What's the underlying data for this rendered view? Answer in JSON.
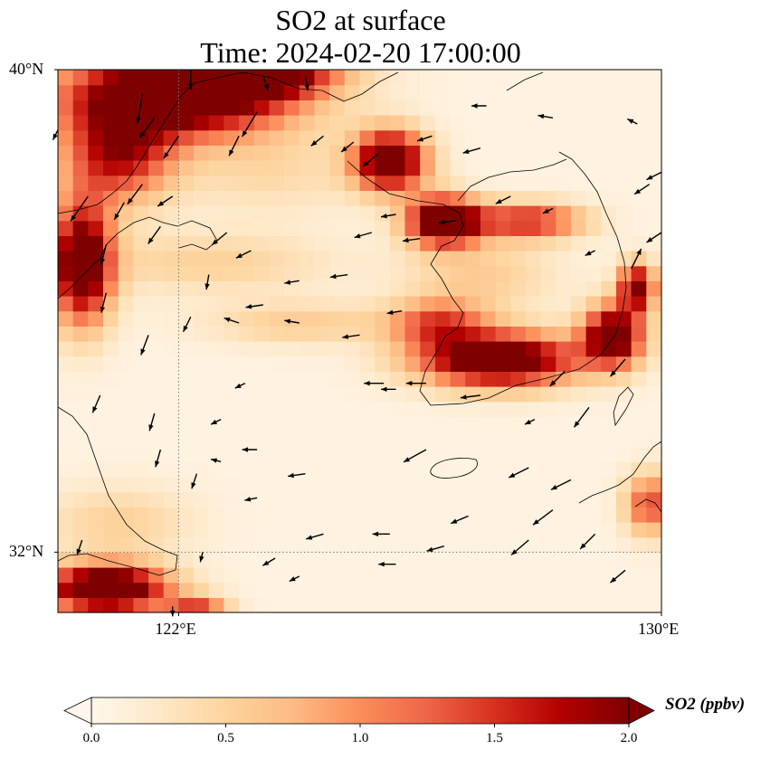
{
  "title_line1": "SO2 at surface",
  "title_line2": "Time: 2024-02-20 17:00:00",
  "map": {
    "lon_range": [
      120,
      130
    ],
    "lat_range": [
      31,
      40
    ],
    "lat_ticks": [
      {
        "value": 40,
        "label": "40°N"
      },
      {
        "value": 32,
        "label": "32°N"
      }
    ],
    "lon_ticks": [
      {
        "value": 122,
        "label": "122°E"
      },
      {
        "value": 130,
        "label": "130°E"
      }
    ],
    "gridlines": [
      {
        "axis": "lon",
        "value": 122
      },
      {
        "axis": "lat",
        "value": 32
      }
    ],
    "field_name": "SO2",
    "hotspots": [
      {
        "lon": 122.0,
        "lat": 39.6,
        "rlon": 1.9,
        "rlat": 0.7,
        "peak": 2.6
      },
      {
        "lon": 123.2,
        "lat": 40.0,
        "rlon": 1.3,
        "rlat": 0.4,
        "peak": 2.2
      },
      {
        "lon": 121.0,
        "lat": 38.6,
        "rlon": 0.9,
        "rlat": 0.8,
        "peak": 1.6
      },
      {
        "lon": 120.4,
        "lat": 36.8,
        "rlon": 0.5,
        "rlat": 1.0,
        "peak": 2.4
      },
      {
        "lon": 125.5,
        "lat": 38.5,
        "rlon": 0.6,
        "rlat": 0.5,
        "peak": 2.4
      },
      {
        "lon": 126.4,
        "lat": 37.5,
        "rlon": 0.6,
        "rlat": 0.4,
        "peak": 2.6
      },
      {
        "lon": 127.8,
        "lat": 37.5,
        "rlon": 0.9,
        "rlat": 0.3,
        "peak": 1.5
      },
      {
        "lon": 127.3,
        "lat": 35.2,
        "rlon": 1.3,
        "rlat": 0.45,
        "peak": 2.5
      },
      {
        "lon": 129.2,
        "lat": 35.6,
        "rlon": 0.5,
        "rlat": 0.5,
        "peak": 2.3
      },
      {
        "lon": 129.6,
        "lat": 36.4,
        "rlon": 0.3,
        "rlat": 0.4,
        "peak": 2.0
      },
      {
        "lon": 126.3,
        "lat": 35.8,
        "rlon": 0.8,
        "rlat": 0.4,
        "peak": 1.2
      },
      {
        "lon": 120.8,
        "lat": 31.4,
        "rlon": 1.0,
        "rlat": 0.4,
        "peak": 2.7
      },
      {
        "lon": 122.3,
        "lat": 31.1,
        "rlon": 0.5,
        "rlat": 0.2,
        "peak": 1.2
      },
      {
        "lon": 129.8,
        "lat": 32.8,
        "rlon": 0.4,
        "rlat": 0.5,
        "peak": 1.3
      },
      {
        "lon": 124.0,
        "lat": 35.8,
        "rlon": 1.5,
        "rlat": 0.35,
        "peak": 0.5
      },
      {
        "lon": 122.5,
        "lat": 36.8,
        "rlon": 2.0,
        "rlat": 0.5,
        "peak": 0.45
      },
      {
        "lon": 123.5,
        "lat": 38.3,
        "rlon": 1.5,
        "rlat": 0.7,
        "peak": 0.35
      },
      {
        "lon": 121.0,
        "lat": 32.5,
        "rlon": 1.2,
        "rlat": 0.6,
        "peak": 0.45
      },
      {
        "lon": 127.0,
        "lat": 36.6,
        "rlon": 1.2,
        "rlat": 0.6,
        "peak": 0.5
      }
    ],
    "wind_vectors": [
      [
        121.4,
        39.6,
        -0.1,
        -0.6
      ],
      [
        122.2,
        40.0,
        0.0,
        -0.4
      ],
      [
        123.4,
        39.9,
        0.1,
        -0.3
      ],
      [
        124.1,
        39.9,
        0.05,
        -0.3
      ],
      [
        121.6,
        39.2,
        -0.3,
        -0.4
      ],
      [
        122.0,
        38.9,
        -0.3,
        -0.45
      ],
      [
        121.4,
        38.1,
        -0.3,
        -0.4
      ],
      [
        123.0,
        38.9,
        -0.2,
        -0.4
      ],
      [
        123.3,
        39.3,
        -0.3,
        -0.5
      ],
      [
        124.4,
        38.9,
        -0.25,
        -0.2
      ],
      [
        124.9,
        38.8,
        -0.25,
        -0.2
      ],
      [
        125.3,
        38.6,
        -0.3,
        -0.25
      ],
      [
        120.5,
        37.9,
        -0.35,
        -0.5
      ],
      [
        121.1,
        37.8,
        -0.2,
        -0.35
      ],
      [
        121.9,
        37.9,
        -0.3,
        -0.2
      ],
      [
        122.8,
        37.3,
        -0.3,
        -0.25
      ],
      [
        122.5,
        36.6,
        -0.05,
        -0.3
      ],
      [
        123.2,
        37.0,
        -0.3,
        -0.15
      ],
      [
        120.8,
        37.1,
        -0.1,
        -0.4
      ],
      [
        121.7,
        37.4,
        -0.25,
        -0.35
      ],
      [
        123.4,
        36.1,
        -0.35,
        -0.05
      ],
      [
        124.0,
        36.5,
        -0.3,
        -0.05
      ],
      [
        124.8,
        36.6,
        -0.35,
        -0.05
      ],
      [
        125.7,
        36.0,
        -0.3,
        -0.05
      ],
      [
        125.2,
        37.3,
        -0.35,
        -0.1
      ],
      [
        126.0,
        37.2,
        -0.35,
        -0.05
      ],
      [
        125.6,
        37.6,
        -0.3,
        -0.05
      ],
      [
        126.6,
        37.5,
        -0.35,
        -0.05
      ],
      [
        126.2,
        38.9,
        -0.3,
        -0.1
      ],
      [
        127.0,
        38.7,
        -0.35,
        -0.1
      ],
      [
        127.5,
        37.9,
        -0.3,
        -0.15
      ],
      [
        128.2,
        37.7,
        -0.2,
        -0.1
      ],
      [
        128.9,
        37.0,
        -0.2,
        -0.1
      ],
      [
        129.5,
        36.7,
        0.2,
        0.4
      ],
      [
        130.0,
        37.3,
        -0.3,
        -0.2
      ],
      [
        129.8,
        38.1,
        -0.3,
        -0.2
      ],
      [
        130.0,
        38.3,
        -0.3,
        -0.15
      ],
      [
        127.1,
        39.4,
        -0.3,
        0.0
      ],
      [
        128.2,
        39.2,
        -0.3,
        0.05
      ],
      [
        129.6,
        39.1,
        -0.2,
        0.1
      ],
      [
        120.0,
        39.0,
        -0.1,
        -0.2
      ],
      [
        120.8,
        36.3,
        -0.1,
        -0.4
      ],
      [
        121.5,
        35.6,
        -0.15,
        -0.4
      ],
      [
        120.7,
        34.6,
        -0.15,
        -0.35
      ],
      [
        121.6,
        34.3,
        -0.1,
        -0.35
      ],
      [
        122.2,
        35.9,
        -0.15,
        -0.3
      ],
      [
        123.0,
        35.8,
        -0.3,
        0.1
      ],
      [
        124.0,
        35.8,
        -0.3,
        0.05
      ],
      [
        125.0,
        35.6,
        -0.35,
        -0.05
      ],
      [
        125.4,
        34.8,
        -0.4,
        0.0
      ],
      [
        126.1,
        34.8,
        -0.4,
        0.0
      ],
      [
        127.0,
        34.6,
        -0.4,
        -0.05
      ],
      [
        128.4,
        35.0,
        -0.3,
        -0.3
      ],
      [
        129.4,
        35.2,
        -0.3,
        -0.35
      ],
      [
        128.8,
        34.4,
        -0.3,
        -0.4
      ],
      [
        128.5,
        33.2,
        -0.4,
        -0.2
      ],
      [
        128.2,
        32.7,
        -0.4,
        -0.3
      ],
      [
        127.8,
        32.2,
        -0.35,
        -0.3
      ],
      [
        128.9,
        32.3,
        -0.3,
        -0.3
      ],
      [
        129.4,
        31.7,
        -0.3,
        -0.25
      ],
      [
        126.8,
        32.6,
        -0.35,
        -0.15
      ],
      [
        126.1,
        33.7,
        -0.45,
        -0.25
      ],
      [
        127.8,
        33.4,
        -0.4,
        -0.2
      ],
      [
        126.4,
        32.1,
        -0.35,
        -0.1
      ],
      [
        125.5,
        32.3,
        -0.35,
        0.0
      ],
      [
        125.6,
        31.8,
        -0.35,
        0.0
      ],
      [
        124.4,
        32.3,
        -0.35,
        -0.1
      ],
      [
        124.0,
        31.6,
        -0.2,
        -0.1
      ],
      [
        123.6,
        31.9,
        -0.25,
        -0.15
      ],
      [
        122.7,
        33.5,
        -0.2,
        0.05
      ],
      [
        121.7,
        33.7,
        -0.1,
        -0.35
      ],
      [
        122.3,
        33.3,
        -0.1,
        -0.3
      ],
      [
        120.4,
        32.2,
        -0.1,
        -0.3
      ],
      [
        122.4,
        32.0,
        -0.05,
        -0.2
      ],
      [
        121.9,
        31.1,
        0.0,
        -0.2
      ],
      [
        123.3,
        32.9,
        -0.25,
        -0.05
      ],
      [
        123.3,
        33.7,
        -0.3,
        0.0
      ],
      [
        124.1,
        33.3,
        -0.35,
        -0.05
      ],
      [
        125.6,
        34.7,
        -0.3,
        0.0
      ],
      [
        127.9,
        34.2,
        -0.2,
        -0.1
      ],
      [
        123.1,
        34.8,
        -0.2,
        -0.1
      ],
      [
        122.7,
        34.2,
        -0.2,
        -0.1
      ]
    ]
  },
  "colorbar": {
    "label": "SO2 (ppbv)",
    "min": 0.0,
    "max": 2.0,
    "ticks": [
      {
        "value": 0.0,
        "label": "0.0"
      },
      {
        "value": 0.5,
        "label": "0.5"
      },
      {
        "value": 1.0,
        "label": "1.0"
      },
      {
        "value": 1.5,
        "label": "1.5"
      },
      {
        "value": 2.0,
        "label": "2.0"
      }
    ],
    "colors": [
      "#fff7ec",
      "#fee8c8",
      "#fdd49e",
      "#fdbb84",
      "#fc8d59",
      "#ef6548",
      "#d7301f",
      "#b30000",
      "#7f0000"
    ]
  }
}
